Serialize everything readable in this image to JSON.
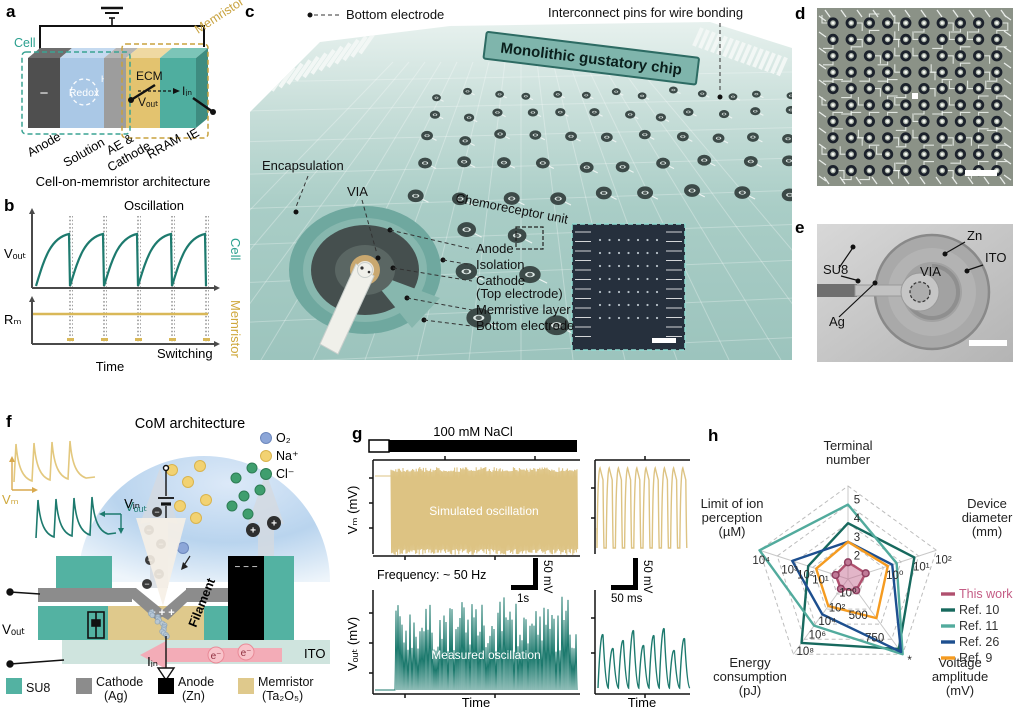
{
  "colors": {
    "teal": "#53b2a2",
    "teal_dark": "#1d7a6e",
    "teal_chip": "#9cc4bd",
    "gold": "#d9b858",
    "tan": "#ddc383",
    "pink": "#c45c85",
    "gray_cathode": "#8c8c8c",
    "ito": "#cfe4de",
    "solution_blue": "#aac8e6"
  },
  "panels": {
    "a": {
      "label": "a",
      "caption": "Cell-on-memristor architecture",
      "cell": "Cell",
      "memristor": "Memristor",
      "redox": "Redox",
      "h_plus": "H⁺",
      "minus": "−",
      "ecm": "ECM",
      "i_in": "Iᵢₙ",
      "v_out": "Vₒᵤₜ",
      "anode": "Anode",
      "solution": "Solution",
      "ae": "AE &",
      "cathode": "Cathode",
      "rram": "RRAM",
      "ie": "IE"
    },
    "b": {
      "label": "b",
      "oscillation": "Oscillation",
      "cell": "Cell",
      "memristor": "Memristor",
      "switching": "Switching",
      "time": "Time",
      "v_out": "Vₒᵤₜ",
      "r_m": "Rₘ"
    },
    "c": {
      "label": "c",
      "bottom_electrode_top": "Bottom electrode",
      "interconnect": "Interconnect pins for wire bonding",
      "banner": "Monolithic gustatory chip",
      "encapsulation": "Encapsulation",
      "via": "VIA",
      "chemoreceptor_unit": "Chemoreceptor unit",
      "anode": "Anode",
      "isolation": "Isolation",
      "cathode": "Cathode",
      "cathode_sub": "(Top electrode)",
      "memristive_layer": "Memristive layer",
      "bottom_electrode": "Bottom electrode"
    },
    "d": {
      "label": "d",
      "grid": {
        "rows": 10,
        "cols": 10
      }
    },
    "e": {
      "label": "e",
      "su8": "SU8",
      "ag": "Ag",
      "zn": "Zn",
      "ito": "ITO",
      "via": "VIA"
    },
    "f": {
      "label": "f",
      "title": "CoM architecture",
      "v_in": "Vᵢₙ",
      "v_out": "Vₒᵤₜ",
      "v_m": "Vₘ",
      "i_in": "Iᵢₙ",
      "filament": "Filament",
      "ito": "ITO",
      "plus_row": "+ + +",
      "anode_dashes": "− − −",
      "e_minus": "e⁻",
      "ions": [
        {
          "name": "O₂",
          "color": "#8ca6d8"
        },
        {
          "name": "Na⁺",
          "color": "#f2d272"
        },
        {
          "name": "Cl⁻",
          "color": "#3f9e6e"
        }
      ],
      "legend": [
        {
          "label": "SU8",
          "sub": "",
          "color": "#53b2a2"
        },
        {
          "label": "Cathode",
          "sub": "(Ag)",
          "color": "#8c8c8c"
        },
        {
          "label": "Anode",
          "sub": "(Zn)",
          "color": "#000000"
        },
        {
          "label": "Memristor",
          "sub": "(Ta₂O₅)",
          "color": "#dfc98c"
        }
      ]
    },
    "g": {
      "label": "g",
      "stimulus": "100 mM NaCl",
      "simulated": "Simulated oscillation",
      "measured": "Measured oscillation",
      "frequency": "Frequency: ~ 50 Hz",
      "vm_axis": "Vₘ (mV)",
      "vout_axis": "Vₒᵤₜ (mV)",
      "time": "Time",
      "scale_v": "50 mV",
      "scale_t1": "1s",
      "scale_t2": "50 ms"
    },
    "h": {
      "label": "h"
    }
  },
  "chart_data": {
    "radar": {
      "type": "radar",
      "axes": [
        {
          "label": "Terminal number",
          "label_lines": [
            "Terminal",
            "number"
          ],
          "ticks": [
            {
              "t": "2",
              "r": 0.2
            },
            {
              "t": "3",
              "r": 0.4
            },
            {
              "t": "4",
              "r": 0.6
            },
            {
              "t": "5",
              "r": 0.8
            }
          ]
        },
        {
          "label": "Device diameter (mm)",
          "label_lines": [
            "Device",
            "diameter",
            "(mm)"
          ],
          "ticks": [
            {
              "t": "10⁰",
              "r": 0.45
            },
            {
              "t": "10¹",
              "r": 0.75
            },
            {
              "t": "10²",
              "r": 1.0
            }
          ]
        },
        {
          "label": "Voltage amplitude (mV)",
          "label_lines": [
            "Voltage",
            "amplitude",
            "(mV)"
          ],
          "ticks": [
            {
              "t": "500",
              "r": 0.48
            },
            {
              "t": "750",
              "r": 0.78
            },
            {
              "t": "*",
              "r": 1.0
            }
          ]
        },
        {
          "label": "Energy consumption (pJ)",
          "label_lines": [
            "Energy",
            "consumption",
            "(pJ)"
          ],
          "ticks": [
            {
              "t": "10⁰",
              "r": 0.22
            },
            {
              "t": "10²",
              "r": 0.42
            },
            {
              "t": "10⁴",
              "r": 0.6
            },
            {
              "t": "10⁶",
              "r": 0.78
            },
            {
              "t": "10⁸",
              "r": 1.0
            }
          ]
        },
        {
          "label": "Limit of ion perception (µM)",
          "label_lines": [
            "Limit of ion",
            "perception",
            "(µM)"
          ],
          "ticks": [
            {
              "t": "10¹",
              "r": 0.3
            },
            {
              "t": "10²",
              "r": 0.47
            },
            {
              "t": "10³",
              "r": 0.65
            },
            {
              "t": "10⁴",
              "r": 0.97
            }
          ]
        }
      ],
      "rings": [
        0.2,
        0.4,
        0.6,
        0.8,
        1.0
      ],
      "series": [
        {
          "name": "This work",
          "color": "#b0506e",
          "fill": "rgba(197,107,146,0.5)",
          "markers": true,
          "values": [
            0.18,
            0.2,
            0.15,
            0.13,
            0.14
          ]
        },
        {
          "name": "Ref. 10",
          "color": "#17695e",
          "values": [
            0.6,
            0.75,
            0.93,
            0.85,
            0.45
          ]
        },
        {
          "name": "Ref. 11",
          "color": "#52ab9d",
          "values": [
            0.8,
            0.55,
            1.0,
            0.62,
            1.0
          ]
        },
        {
          "name": "Ref. 26",
          "color": "#1d4f8f",
          "values": [
            0.4,
            0.5,
            0.97,
            0.47,
            0.63
          ]
        },
        {
          "name": "Ref. 9",
          "color": "#f59b20",
          "values": [
            0.4,
            0.45,
            0.52,
            0.36,
            0.36
          ]
        }
      ],
      "legend_title_color": "#c45c85"
    },
    "g_oscillation": {
      "type": "line",
      "stimulus": "100 mM NaCl",
      "frequency_hz": 50,
      "series": [
        {
          "name": "Simulated oscillation",
          "axis": "Vₘ (mV)",
          "color_key": "tan"
        },
        {
          "name": "Measured oscillation",
          "axis": "Vₒᵤₜ (mV)",
          "color_key": "teal_dark"
        }
      ],
      "scale_bars": {
        "voltage": "50 mV",
        "time_full": "1s",
        "time_zoom": "50 ms"
      }
    }
  }
}
